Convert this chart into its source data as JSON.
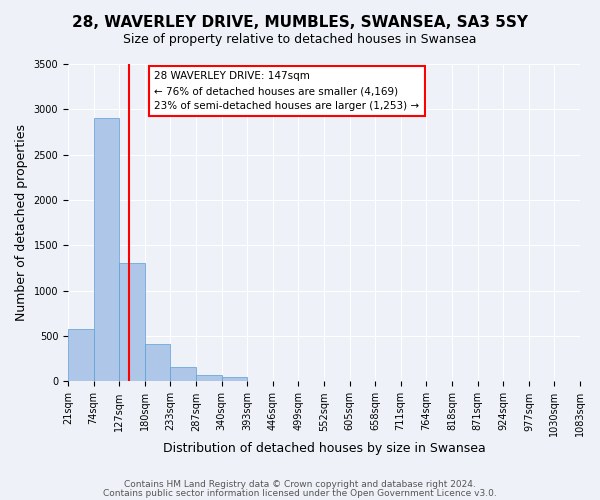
{
  "title": "28, WAVERLEY DRIVE, MUMBLES, SWANSEA, SA3 5SY",
  "subtitle": "Size of property relative to detached houses in Swansea",
  "xlabel": "Distribution of detached houses by size in Swansea",
  "ylabel": "Number of detached properties",
  "bar_edges": [
    21,
    74,
    127,
    180,
    233,
    287,
    340,
    393,
    446,
    499,
    552,
    605,
    658,
    711,
    764,
    818,
    871,
    924,
    977,
    1030,
    1083
  ],
  "bar_heights": [
    580,
    2900,
    1310,
    410,
    165,
    75,
    50,
    0,
    0,
    0,
    0,
    0,
    0,
    0,
    0,
    0,
    0,
    0,
    0,
    0
  ],
  "bar_color": "#aec6e8",
  "bar_edgecolor": "#5a9ed6",
  "property_line_x": 147,
  "property_line_color": "red",
  "annotation_title": "28 WAVERLEY DRIVE: 147sqm",
  "annotation_line1": "← 76% of detached houses are smaller (4,169)",
  "annotation_line2": "23% of semi-detached houses are larger (1,253) →",
  "annotation_box_color": "white",
  "annotation_box_edgecolor": "red",
  "ylim": [
    0,
    3500
  ],
  "yticks": [
    0,
    500,
    1000,
    1500,
    2000,
    2500,
    3000,
    3500
  ],
  "tick_labels": [
    "21sqm",
    "74sqm",
    "127sqm",
    "180sqm",
    "233sqm",
    "287sqm",
    "340sqm",
    "393sqm",
    "446sqm",
    "499sqm",
    "552sqm",
    "605sqm",
    "658sqm",
    "711sqm",
    "764sqm",
    "818sqm",
    "871sqm",
    "924sqm",
    "977sqm",
    "1030sqm",
    "1083sqm"
  ],
  "footnote1": "Contains HM Land Registry data © Crown copyright and database right 2024.",
  "footnote2": "Contains public sector information licensed under the Open Government Licence v3.0.",
  "background_color": "#eef2f8",
  "grid_color": "white",
  "title_fontsize": 11,
  "subtitle_fontsize": 9,
  "axis_label_fontsize": 9,
  "tick_fontsize": 7,
  "footnote_fontsize": 6.5
}
